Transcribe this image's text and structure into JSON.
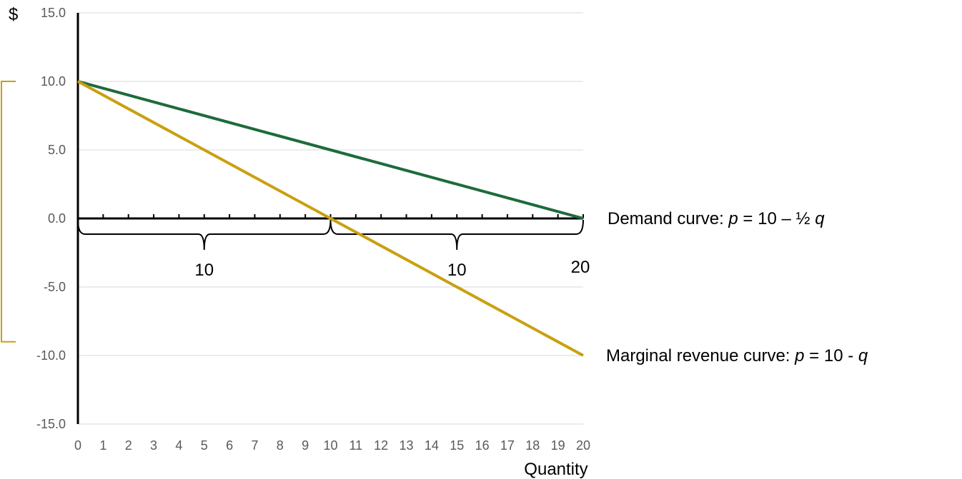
{
  "chart_data": {
    "type": "line",
    "x": [
      0,
      1,
      2,
      3,
      4,
      5,
      6,
      7,
      8,
      9,
      10,
      11,
      12,
      13,
      14,
      15,
      16,
      17,
      18,
      19,
      20
    ],
    "xticks": [
      "0",
      "1",
      "2",
      "3",
      "4",
      "5",
      "6",
      "7",
      "8",
      "9",
      "10",
      "11",
      "12",
      "13",
      "14",
      "15",
      "16",
      "17",
      "18",
      "19",
      "20"
    ],
    "yticks": [
      "15.0",
      "10.0",
      "5.0",
      "0.0",
      "-5.0",
      "-10.0",
      "-15.0"
    ],
    "ytick_values": [
      15,
      10,
      5,
      0,
      -5,
      -10,
      -15
    ],
    "xlim": [
      0,
      20
    ],
    "ylim": [
      -15,
      15
    ],
    "ylabel": "$",
    "xlabel": "Quantity",
    "grid": true,
    "series": [
      {
        "label_prefix": "Demand curve: ",
        "label_var": "p",
        "label_mid": " = 10 – ½ ",
        "label_var2": "q",
        "color": "#1e6b3c",
        "points": [
          [
            0,
            10
          ],
          [
            20,
            0
          ]
        ]
      },
      {
        "label_prefix": "Marginal revenue curve: ",
        "label_var": "p",
        "label_mid": " = 10 - ",
        "label_var2": "q",
        "color": "#c9a010",
        "points": [
          [
            0,
            10
          ],
          [
            20,
            -10
          ]
        ]
      }
    ],
    "annotations": {
      "brace_left_label": "10",
      "brace_right_label": "10",
      "end_label": "20",
      "bracket_color": "#c9a010"
    }
  }
}
